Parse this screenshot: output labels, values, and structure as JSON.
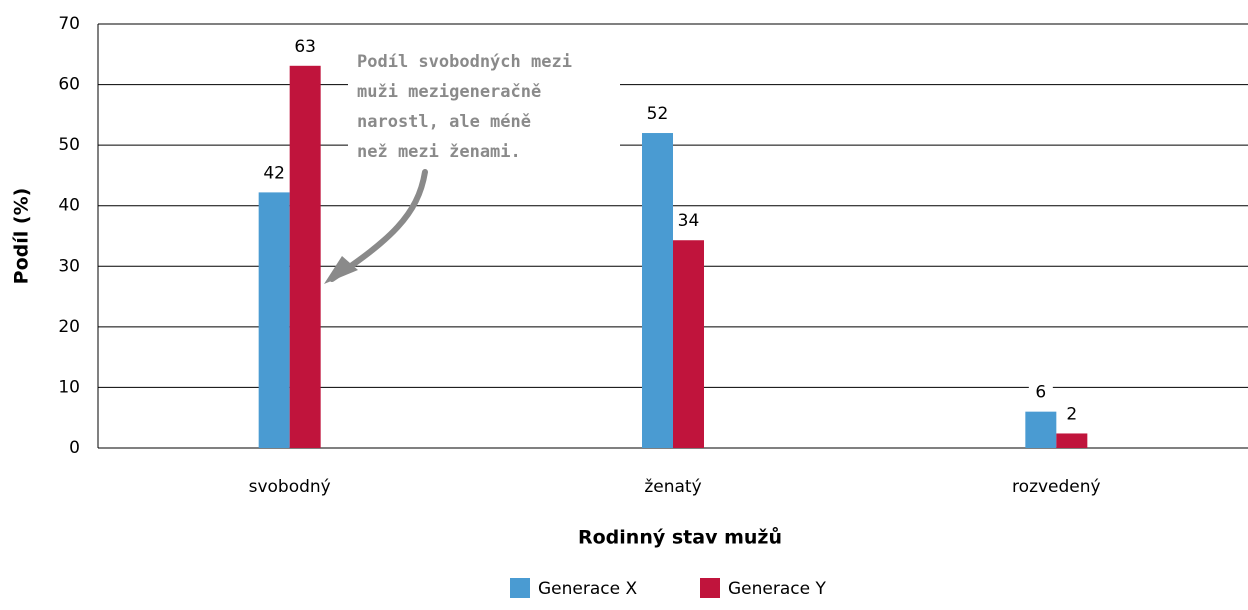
{
  "chart_data": {
    "type": "bar",
    "xlabel": "Rodinný stav mužů",
    "ylabel": "Podíl (%)",
    "categories": [
      "svobodný",
      "ženatý",
      "rozvedený"
    ],
    "series": [
      {
        "name": "Generace X",
        "color": "#4a9bd2",
        "values": [
          42.2,
          52,
          6
        ],
        "value_labels": [
          "42",
          "52",
          "6"
        ]
      },
      {
        "name": "Generace Y",
        "color": "#c0143c",
        "values": [
          63.1,
          34.3,
          2.4
        ],
        "value_labels": [
          "63",
          "34",
          "2"
        ]
      }
    ],
    "annotation": [
      "Podíl svobodných mezi",
      "muži mezigeneračně",
      "narostl, ale méně",
      "než mezi ženami."
    ],
    "ylim": [
      0,
      70
    ],
    "yticks": [
      0,
      10,
      20,
      30,
      40,
      50,
      60,
      70
    ],
    "grid": true,
    "legend": "bottom"
  }
}
